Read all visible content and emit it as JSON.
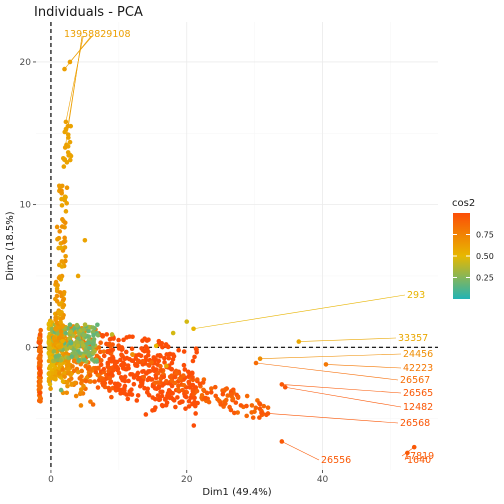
{
  "chart_data": {
    "type": "scatter",
    "title": "Individuals - PCA",
    "xlabel": "Dim1 (49.4%)",
    "ylabel": "Dim2 (18.5%)",
    "xlim": [
      -2.2,
      57
    ],
    "ylim": [
      -8.6,
      22.8
    ],
    "x_ticks": [
      0,
      20,
      40
    ],
    "y_ticks": [
      0,
      10,
      20
    ],
    "reference_lines": {
      "x": 0,
      "y": 0,
      "style": "dashed"
    },
    "grid": true,
    "color_variable": "cos2",
    "legend": {
      "title": "cos2",
      "position": "right",
      "ticks": [
        0.25,
        0.5,
        0.75
      ],
      "gradient_colors": [
        "#22b3b5",
        "#e7b800",
        "#fc4e07"
      ]
    },
    "colors": {
      "low": "#22b3b5",
      "mid": "#e7b800",
      "high": "#fc4e07"
    },
    "labeled_points": [
      {
        "label": "293",
        "x": 21.0,
        "y": 1.3,
        "cos2": 0.52
      },
      {
        "label": "33357",
        "x": 36.5,
        "y": 0.4,
        "cos2": 0.58
      },
      {
        "label": "24456",
        "x": 30.8,
        "y": -0.8,
        "cos2": 0.7
      },
      {
        "label": "42223",
        "x": 40.5,
        "y": -1.2,
        "cos2": 0.8
      },
      {
        "label": "26567",
        "x": 30.2,
        "y": -1.1,
        "cos2": 0.86
      },
      {
        "label": "26565",
        "x": 34.0,
        "y": -2.6,
        "cos2": 0.95
      },
      {
        "label": "12482",
        "x": 34.5,
        "y": -2.8,
        "cos2": 0.96
      },
      {
        "label": "26568",
        "x": 31.0,
        "y": -4.6,
        "cos2": 0.96
      },
      {
        "label": "17819",
        "x": 53.5,
        "y": -7.0,
        "cos2": 0.95
      },
      {
        "label": "1640",
        "x": 52.5,
        "y": -7.4,
        "cos2": 0.95
      },
      {
        "label": "26556",
        "x": 34.0,
        "y": -6.6,
        "cos2": 0.95
      },
      {
        "label": "13",
        "x": 2.2,
        "y": 15.8,
        "cos2": 0.62
      },
      {
        "label": "58",
        "x": 2.5,
        "y": 15.5,
        "cos2": 0.62
      },
      {
        "label": "83",
        "x": 2.0,
        "y": 19.5,
        "cos2": 0.62
      },
      {
        "label": "89",
        "x": 2.8,
        "y": 20.0,
        "cos2": 0.62
      },
      {
        "label": "108",
        "x": 2.1,
        "y": 14.0,
        "cos2": 0.62
      }
    ],
    "top_label_text": "13958829108"
  }
}
